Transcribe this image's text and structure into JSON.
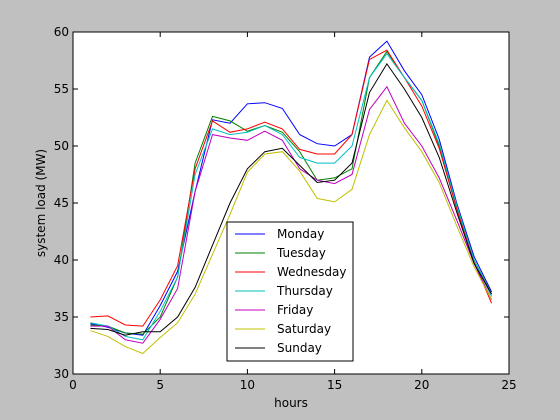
{
  "chart_data": {
    "type": "line",
    "xlabel": "hours",
    "ylabel": "system load (MW)",
    "xlim": [
      0,
      25
    ],
    "ylim": [
      30,
      60
    ],
    "xticks": [
      0,
      5,
      10,
      15,
      20,
      25
    ],
    "yticks": [
      30,
      35,
      40,
      45,
      50,
      55,
      60
    ],
    "grid": false,
    "legend_position": "lower-center",
    "x": [
      1,
      2,
      3,
      4,
      5,
      6,
      7,
      8,
      9,
      10,
      11,
      12,
      13,
      14,
      15,
      16,
      17,
      18,
      19,
      20,
      21,
      22,
      23,
      24
    ],
    "series": [
      {
        "name": "Monday",
        "color": "#0000ff",
        "values": [
          34.4,
          34.1,
          33.6,
          33.4,
          36.0,
          39.0,
          46.0,
          52.3,
          52.0,
          53.7,
          53.8,
          53.3,
          51.0,
          50.2,
          50.0,
          51.0,
          57.8,
          59.2,
          56.6,
          54.5,
          50.6,
          45.0,
          40.3,
          37.2
        ]
      },
      {
        "name": "Tuesday",
        "color": "#008000",
        "values": [
          34.3,
          34.2,
          33.6,
          33.5,
          35.0,
          38.5,
          48.5,
          52.6,
          52.2,
          51.3,
          51.8,
          51.2,
          49.5,
          47.0,
          47.2,
          48.0,
          56.0,
          58.3,
          56.0,
          54.0,
          50.0,
          44.8,
          40.0,
          37.0
        ]
      },
      {
        "name": "Wednesday",
        "color": "#ff0000",
        "values": [
          35.0,
          35.1,
          34.3,
          34.2,
          36.5,
          39.5,
          48.0,
          52.2,
          51.2,
          51.5,
          52.1,
          51.5,
          49.7,
          49.3,
          49.3,
          51.0,
          57.6,
          58.4,
          56.0,
          53.5,
          49.8,
          44.5,
          39.8,
          36.2
        ]
      },
      {
        "name": "Thursday",
        "color": "#00c0c0",
        "values": [
          34.5,
          34.2,
          33.3,
          33.0,
          35.5,
          38.5,
          47.5,
          51.5,
          51.0,
          51.2,
          51.8,
          51.0,
          49.0,
          48.5,
          48.5,
          50.0,
          56.0,
          58.1,
          56.0,
          54.0,
          50.2,
          44.8,
          40.0,
          36.8
        ]
      },
      {
        "name": "Friday",
        "color": "#c000c0",
        "values": [
          34.2,
          34.2,
          33.0,
          32.7,
          34.8,
          37.5,
          46.0,
          51.0,
          50.7,
          50.5,
          51.3,
          50.5,
          48.0,
          47.0,
          46.7,
          47.5,
          53.2,
          55.2,
          52.0,
          50.0,
          47.2,
          43.5,
          39.7,
          36.5
        ]
      },
      {
        "name": "Saturday",
        "color": "#c0c000",
        "values": [
          33.8,
          33.3,
          32.4,
          31.8,
          33.2,
          34.5,
          37.0,
          40.5,
          44.0,
          47.7,
          49.3,
          49.5,
          47.8,
          45.4,
          45.1,
          46.2,
          51.0,
          54.0,
          51.6,
          49.5,
          46.8,
          43.0,
          39.4,
          36.5
        ]
      },
      {
        "name": "Sunday",
        "color": "#000000",
        "values": [
          34.0,
          33.9,
          33.4,
          33.7,
          33.7,
          35.0,
          37.6,
          41.3,
          45.0,
          48.0,
          49.5,
          49.8,
          48.3,
          46.8,
          47.0,
          48.5,
          54.7,
          57.2,
          55.0,
          52.5,
          49.0,
          44.2,
          39.7,
          37.0
        ]
      }
    ]
  }
}
